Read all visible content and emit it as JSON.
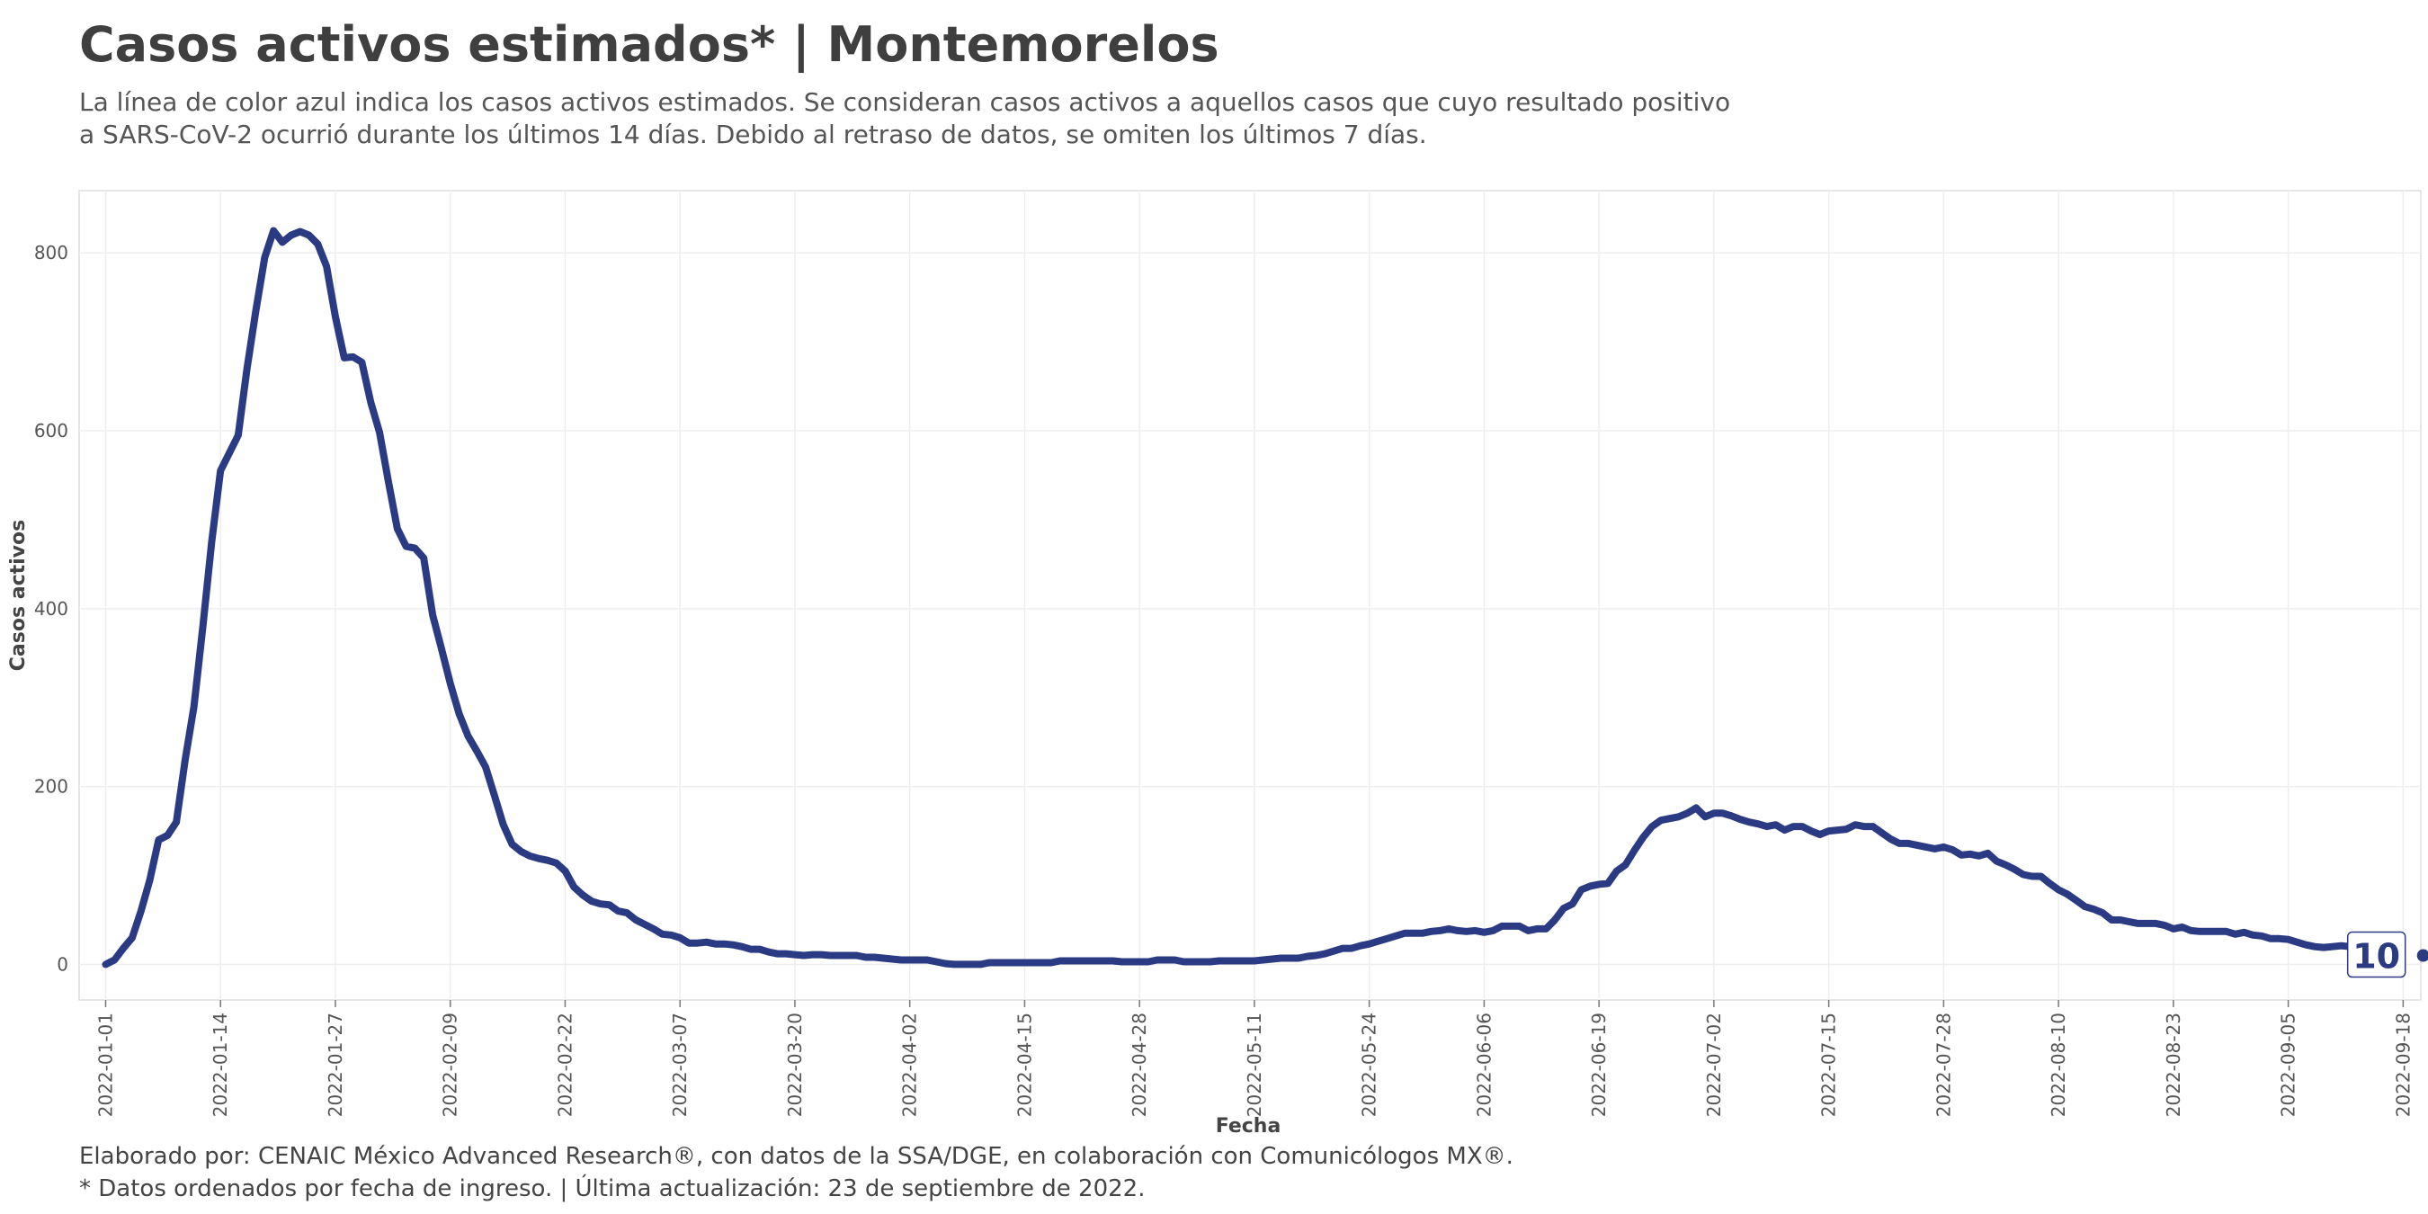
{
  "header": {
    "title": "Casos activos estimados* | Montemorelos",
    "subtitle_line1": "La línea de color azul indica los casos activos estimados. Se consideran casos activos a aquellos casos que cuyo resultado positivo",
    "subtitle_line2": "a SARS-CoV-2 ocurrió durante los últimos 14 días. Debido al retraso de datos, se omiten los últimos 7 días."
  },
  "footer": {
    "credit": "Elaborado por: CENAIC México Advanced Research®, con datos de la SSA/DGE, en colaboración con Comunicólogos MX®.",
    "note": "* Datos ordenados por fecha de ingreso. | Última actualización: 23 de septiembre de 2022."
  },
  "colors": {
    "line": "#2a3b83",
    "grid": "#eeeeee",
    "panel_border": "#dddddd"
  },
  "chart_data": {
    "type": "line",
    "xlabel": "Fecha",
    "ylabel": "Casos activos",
    "x_ticks": [
      "2022-01-01",
      "2022-01-14",
      "2022-01-27",
      "2022-02-09",
      "2022-02-22",
      "2022-03-07",
      "2022-03-20",
      "2022-04-02",
      "2022-04-15",
      "2022-04-28",
      "2022-05-11",
      "2022-05-24",
      "2022-06-06",
      "2022-06-19",
      "2022-07-02",
      "2022-07-15",
      "2022-07-28",
      "2022-08-10",
      "2022-08-23",
      "2022-09-05",
      "2022-09-18"
    ],
    "y_ticks": [
      0,
      200,
      400,
      600,
      800
    ],
    "xlim": [
      "2021-12-29",
      "2022-09-20"
    ],
    "ylim": [
      -40,
      870
    ],
    "grid": true,
    "last_value_label": "10",
    "series": [
      {
        "points": [
          [
            "2022-01-01",
            0
          ],
          [
            "2022-01-02",
            5
          ],
          [
            "2022-01-03",
            18
          ],
          [
            "2022-01-04",
            30
          ],
          [
            "2022-01-05",
            60
          ],
          [
            "2022-01-06",
            95
          ],
          [
            "2022-01-07",
            140
          ],
          [
            "2022-01-08",
            145
          ],
          [
            "2022-01-09",
            160
          ],
          [
            "2022-01-10",
            230
          ],
          [
            "2022-01-11",
            290
          ],
          [
            "2022-01-12",
            380
          ],
          [
            "2022-01-13",
            475
          ],
          [
            "2022-01-14",
            555
          ],
          [
            "2022-01-15",
            575
          ],
          [
            "2022-01-16",
            595
          ],
          [
            "2022-01-17",
            670
          ],
          [
            "2022-01-18",
            735
          ],
          [
            "2022-01-19",
            795
          ],
          [
            "2022-01-20",
            825
          ],
          [
            "2022-01-21",
            812
          ],
          [
            "2022-01-22",
            820
          ],
          [
            "2022-01-23",
            824
          ],
          [
            "2022-01-24",
            820
          ],
          [
            "2022-01-25",
            810
          ],
          [
            "2022-01-26",
            785
          ],
          [
            "2022-01-27",
            728
          ],
          [
            "2022-01-28",
            682
          ],
          [
            "2022-01-29",
            683
          ],
          [
            "2022-01-30",
            677
          ],
          [
            "2022-01-31",
            632
          ],
          [
            "2022-02-01",
            598
          ],
          [
            "2022-02-02",
            543
          ],
          [
            "2022-02-03",
            490
          ],
          [
            "2022-02-04",
            470
          ],
          [
            "2022-02-05",
            468
          ],
          [
            "2022-02-06",
            457
          ],
          [
            "2022-02-07",
            393
          ],
          [
            "2022-02-08",
            355
          ],
          [
            "2022-02-09",
            316
          ],
          [
            "2022-02-10",
            282
          ],
          [
            "2022-02-11",
            257
          ],
          [
            "2022-02-12",
            240
          ],
          [
            "2022-02-13",
            222
          ],
          [
            "2022-02-14",
            190
          ],
          [
            "2022-02-15",
            157
          ],
          [
            "2022-02-16",
            135
          ],
          [
            "2022-02-17",
            127
          ],
          [
            "2022-02-18",
            122
          ],
          [
            "2022-02-19",
            119
          ],
          [
            "2022-02-20",
            117
          ],
          [
            "2022-02-21",
            114
          ],
          [
            "2022-02-22",
            105
          ],
          [
            "2022-02-23",
            87
          ],
          [
            "2022-02-24",
            78
          ],
          [
            "2022-02-25",
            71
          ],
          [
            "2022-02-26",
            68
          ],
          [
            "2022-02-27",
            67
          ],
          [
            "2022-02-28",
            60
          ],
          [
            "2022-03-01",
            58
          ],
          [
            "2022-03-02",
            50
          ],
          [
            "2022-03-03",
            45
          ],
          [
            "2022-03-04",
            40
          ],
          [
            "2022-03-05",
            34
          ],
          [
            "2022-03-06",
            33
          ],
          [
            "2022-03-07",
            30
          ],
          [
            "2022-03-08",
            24
          ],
          [
            "2022-03-09",
            24
          ],
          [
            "2022-03-10",
            25
          ],
          [
            "2022-03-11",
            23
          ],
          [
            "2022-03-12",
            23
          ],
          [
            "2022-03-13",
            22
          ],
          [
            "2022-03-14",
            20
          ],
          [
            "2022-03-15",
            17
          ],
          [
            "2022-03-16",
            17
          ],
          [
            "2022-03-17",
            14
          ],
          [
            "2022-03-18",
            12
          ],
          [
            "2022-03-19",
            12
          ],
          [
            "2022-03-20",
            11
          ],
          [
            "2022-03-21",
            10
          ],
          [
            "2022-03-22",
            11
          ],
          [
            "2022-03-23",
            11
          ],
          [
            "2022-03-24",
            10
          ],
          [
            "2022-03-25",
            10
          ],
          [
            "2022-03-26",
            10
          ],
          [
            "2022-03-27",
            10
          ],
          [
            "2022-03-28",
            8
          ],
          [
            "2022-03-29",
            8
          ],
          [
            "2022-03-30",
            7
          ],
          [
            "2022-03-31",
            6
          ],
          [
            "2022-04-01",
            5
          ],
          [
            "2022-04-02",
            5
          ],
          [
            "2022-04-03",
            5
          ],
          [
            "2022-04-04",
            5
          ],
          [
            "2022-04-05",
            3
          ],
          [
            "2022-04-06",
            1
          ],
          [
            "2022-04-07",
            0
          ],
          [
            "2022-04-08",
            0
          ],
          [
            "2022-04-09",
            0
          ],
          [
            "2022-04-10",
            0
          ],
          [
            "2022-04-11",
            2
          ],
          [
            "2022-04-12",
            2
          ],
          [
            "2022-04-13",
            2
          ],
          [
            "2022-04-14",
            2
          ],
          [
            "2022-04-15",
            2
          ],
          [
            "2022-04-16",
            2
          ],
          [
            "2022-04-17",
            2
          ],
          [
            "2022-04-18",
            2
          ],
          [
            "2022-04-19",
            4
          ],
          [
            "2022-04-20",
            4
          ],
          [
            "2022-04-21",
            4
          ],
          [
            "2022-04-22",
            4
          ],
          [
            "2022-04-23",
            4
          ],
          [
            "2022-04-24",
            4
          ],
          [
            "2022-04-25",
            4
          ],
          [
            "2022-04-26",
            3
          ],
          [
            "2022-04-27",
            3
          ],
          [
            "2022-04-28",
            3
          ],
          [
            "2022-04-29",
            3
          ],
          [
            "2022-04-30",
            5
          ],
          [
            "2022-05-01",
            5
          ],
          [
            "2022-05-02",
            5
          ],
          [
            "2022-05-03",
            3
          ],
          [
            "2022-05-04",
            3
          ],
          [
            "2022-05-05",
            3
          ],
          [
            "2022-05-06",
            3
          ],
          [
            "2022-05-07",
            4
          ],
          [
            "2022-05-08",
            4
          ],
          [
            "2022-05-09",
            4
          ],
          [
            "2022-05-10",
            4
          ],
          [
            "2022-05-11",
            4
          ],
          [
            "2022-05-12",
            5
          ],
          [
            "2022-05-13",
            6
          ],
          [
            "2022-05-14",
            7
          ],
          [
            "2022-05-15",
            7
          ],
          [
            "2022-05-16",
            7
          ],
          [
            "2022-05-17",
            9
          ],
          [
            "2022-05-18",
            10
          ],
          [
            "2022-05-19",
            12
          ],
          [
            "2022-05-20",
            15
          ],
          [
            "2022-05-21",
            18
          ],
          [
            "2022-05-22",
            18
          ],
          [
            "2022-05-23",
            21
          ],
          [
            "2022-05-24",
            23
          ],
          [
            "2022-05-25",
            26
          ],
          [
            "2022-05-26",
            29
          ],
          [
            "2022-05-27",
            32
          ],
          [
            "2022-05-28",
            35
          ],
          [
            "2022-05-29",
            35
          ],
          [
            "2022-05-30",
            35
          ],
          [
            "2022-05-31",
            37
          ],
          [
            "2022-06-01",
            38
          ],
          [
            "2022-06-02",
            40
          ],
          [
            "2022-06-03",
            38
          ],
          [
            "2022-06-04",
            37
          ],
          [
            "2022-06-05",
            38
          ],
          [
            "2022-06-06",
            36
          ],
          [
            "2022-06-07",
            38
          ],
          [
            "2022-06-08",
            43
          ],
          [
            "2022-06-09",
            43
          ],
          [
            "2022-06-10",
            43
          ],
          [
            "2022-06-11",
            38
          ],
          [
            "2022-06-12",
            40
          ],
          [
            "2022-06-13",
            40
          ],
          [
            "2022-06-14",
            50
          ],
          [
            "2022-06-15",
            63
          ],
          [
            "2022-06-16",
            68
          ],
          [
            "2022-06-17",
            84
          ],
          [
            "2022-06-18",
            88
          ],
          [
            "2022-06-19",
            90
          ],
          [
            "2022-06-20",
            91
          ],
          [
            "2022-06-21",
            105
          ],
          [
            "2022-06-22",
            112
          ],
          [
            "2022-06-23",
            128
          ],
          [
            "2022-06-24",
            143
          ],
          [
            "2022-06-25",
            155
          ],
          [
            "2022-06-26",
            162
          ],
          [
            "2022-06-27",
            164
          ],
          [
            "2022-06-28",
            166
          ],
          [
            "2022-06-29",
            170
          ],
          [
            "2022-06-30",
            176
          ],
          [
            "2022-07-01",
            166
          ],
          [
            "2022-07-02",
            170
          ],
          [
            "2022-07-03",
            170
          ],
          [
            "2022-07-04",
            167
          ],
          [
            "2022-07-05",
            163
          ],
          [
            "2022-07-06",
            160
          ],
          [
            "2022-07-07",
            158
          ],
          [
            "2022-07-08",
            155
          ],
          [
            "2022-07-09",
            157
          ],
          [
            "2022-07-10",
            151
          ],
          [
            "2022-07-11",
            155
          ],
          [
            "2022-07-12",
            155
          ],
          [
            "2022-07-13",
            150
          ],
          [
            "2022-07-14",
            146
          ],
          [
            "2022-07-15",
            150
          ],
          [
            "2022-07-16",
            151
          ],
          [
            "2022-07-17",
            152
          ],
          [
            "2022-07-18",
            157
          ],
          [
            "2022-07-19",
            155
          ],
          [
            "2022-07-20",
            155
          ],
          [
            "2022-07-21",
            148
          ],
          [
            "2022-07-22",
            141
          ],
          [
            "2022-07-23",
            136
          ],
          [
            "2022-07-24",
            136
          ],
          [
            "2022-07-25",
            134
          ],
          [
            "2022-07-26",
            132
          ],
          [
            "2022-07-27",
            130
          ],
          [
            "2022-07-28",
            132
          ],
          [
            "2022-07-29",
            129
          ],
          [
            "2022-07-30",
            123
          ],
          [
            "2022-07-31",
            124
          ],
          [
            "2022-08-01",
            122
          ],
          [
            "2022-08-02",
            125
          ],
          [
            "2022-08-03",
            116
          ],
          [
            "2022-08-04",
            112
          ],
          [
            "2022-08-05",
            107
          ],
          [
            "2022-08-06",
            101
          ],
          [
            "2022-08-07",
            99
          ],
          [
            "2022-08-08",
            99
          ],
          [
            "2022-08-09",
            91
          ],
          [
            "2022-08-10",
            84
          ],
          [
            "2022-08-11",
            79
          ],
          [
            "2022-08-12",
            72
          ],
          [
            "2022-08-13",
            65
          ],
          [
            "2022-08-14",
            62
          ],
          [
            "2022-08-15",
            58
          ],
          [
            "2022-08-16",
            50
          ],
          [
            "2022-08-17",
            50
          ],
          [
            "2022-08-18",
            48
          ],
          [
            "2022-08-19",
            46
          ],
          [
            "2022-08-20",
            46
          ],
          [
            "2022-08-21",
            46
          ],
          [
            "2022-08-22",
            44
          ],
          [
            "2022-08-23",
            40
          ],
          [
            "2022-08-24",
            42
          ],
          [
            "2022-08-25",
            38
          ],
          [
            "2022-08-26",
            37
          ],
          [
            "2022-08-27",
            37
          ],
          [
            "2022-08-28",
            37
          ],
          [
            "2022-08-29",
            37
          ],
          [
            "2022-08-30",
            34
          ],
          [
            "2022-08-31",
            36
          ],
          [
            "2022-09-01",
            33
          ],
          [
            "2022-09-02",
            32
          ],
          [
            "2022-09-03",
            29
          ],
          [
            "2022-09-04",
            29
          ],
          [
            "2022-09-05",
            28
          ],
          [
            "2022-09-06",
            25
          ],
          [
            "2022-09-07",
            22
          ],
          [
            "2022-09-08",
            20
          ],
          [
            "2022-09-09",
            19
          ],
          [
            "2022-09-10",
            20
          ],
          [
            "2022-09-11",
            21
          ],
          [
            "2022-09-12",
            20
          ],
          [
            "2022-09-13",
            18
          ],
          [
            "2022-09-14",
            15
          ],
          [
            "2022-09-15",
            12
          ],
          [
            "2022-09-16",
            10
          ]
        ]
      }
    ]
  }
}
